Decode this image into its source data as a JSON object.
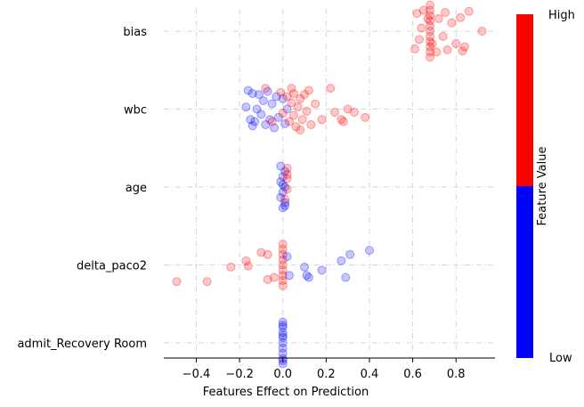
{
  "chart_data": {
    "type": "scatter",
    "xlabel": "Features Effect on Prediction",
    "xlim": [
      -0.55,
      0.98
    ],
    "xticks": [
      "-0.4",
      "-0.2",
      "0.0",
      "0.2",
      "0.4",
      "0.6",
      "0.8"
    ],
    "xtick_values": [
      -0.4,
      -0.2,
      0.0,
      0.2,
      0.4,
      0.6,
      0.8
    ],
    "grid": true,
    "colorbar": {
      "label": "Feature Value",
      "high_label": "High",
      "low_label": "Low",
      "high_color": "#ff0000",
      "low_color": "#0000ff",
      "split_fraction": 0.5
    },
    "features": [
      {
        "name": "bias",
        "points": [
          {
            "x": 0.68,
            "y": 0.0,
            "c": "high"
          },
          {
            "x": 0.68,
            "y": -0.05,
            "c": "high"
          },
          {
            "x": 0.68,
            "y": 0.05,
            "c": "high"
          },
          {
            "x": 0.68,
            "y": -0.1,
            "c": "high"
          },
          {
            "x": 0.68,
            "y": 0.1,
            "c": "high"
          },
          {
            "x": 0.68,
            "y": -0.15,
            "c": "high"
          },
          {
            "x": 0.68,
            "y": 0.15,
            "c": "high"
          },
          {
            "x": 0.68,
            "y": -0.2,
            "c": "high"
          },
          {
            "x": 0.68,
            "y": 0.2,
            "c": "high"
          },
          {
            "x": 0.68,
            "y": -0.25,
            "c": "high"
          },
          {
            "x": 0.68,
            "y": 0.25,
            "c": "high"
          },
          {
            "x": 0.67,
            "y": 0.12,
            "c": "high"
          },
          {
            "x": 0.69,
            "y": -0.12,
            "c": "high"
          },
          {
            "x": 0.62,
            "y": 0.17,
            "c": "high"
          },
          {
            "x": 0.63,
            "y": -0.08,
            "c": "high"
          },
          {
            "x": 0.61,
            "y": -0.17,
            "c": "high"
          },
          {
            "x": 0.64,
            "y": 0.03,
            "c": "high"
          },
          {
            "x": 0.72,
            "y": 0.12,
            "c": "high"
          },
          {
            "x": 0.74,
            "y": -0.05,
            "c": "high"
          },
          {
            "x": 0.75,
            "y": 0.18,
            "c": "high"
          },
          {
            "x": 0.76,
            "y": -0.18,
            "c": "high"
          },
          {
            "x": 0.78,
            "y": 0.08,
            "c": "high"
          },
          {
            "x": 0.8,
            "y": -0.12,
            "c": "high"
          },
          {
            "x": 0.82,
            "y": 0.13,
            "c": "high"
          },
          {
            "x": 0.84,
            "y": -0.15,
            "c": "high"
          },
          {
            "x": 0.83,
            "y": -0.19,
            "c": "high"
          },
          {
            "x": 0.86,
            "y": 0.19,
            "c": "high"
          },
          {
            "x": 0.92,
            "y": 0.0,
            "c": "high"
          },
          {
            "x": 0.71,
            "y": -0.2,
            "c": "high"
          },
          {
            "x": 0.65,
            "y": 0.2,
            "c": "high"
          }
        ]
      },
      {
        "name": "wbc",
        "points": [
          {
            "x": -0.17,
            "y": 0.02,
            "c": "low"
          },
          {
            "x": -0.16,
            "y": 0.18,
            "c": "low"
          },
          {
            "x": -0.14,
            "y": 0.15,
            "c": "low"
          },
          {
            "x": -0.13,
            "y": -0.12,
            "c": "low"
          },
          {
            "x": -0.12,
            "y": 0.0,
            "c": "low"
          },
          {
            "x": -0.11,
            "y": 0.14,
            "c": "low"
          },
          {
            "x": -0.1,
            "y": -0.05,
            "c": "low"
          },
          {
            "x": -0.09,
            "y": 0.08,
            "c": "low"
          },
          {
            "x": -0.08,
            "y": -0.15,
            "c": "low"
          },
          {
            "x": -0.07,
            "y": 0.17,
            "c": "low"
          },
          {
            "x": -0.06,
            "y": -0.1,
            "c": "low"
          },
          {
            "x": -0.05,
            "y": 0.05,
            "c": "low"
          },
          {
            "x": -0.04,
            "y": -0.18,
            "c": "low"
          },
          {
            "x": -0.03,
            "y": 0.12,
            "c": "low"
          },
          {
            "x": -0.02,
            "y": -0.08,
            "c": "low"
          },
          {
            "x": -0.15,
            "y": -0.1,
            "c": "low"
          },
          {
            "x": -0.14,
            "y": -0.16,
            "c": "low"
          },
          {
            "x": 0.0,
            "y": 0.1,
            "c": "low"
          },
          {
            "x": 0.01,
            "y": -0.14,
            "c": "low"
          },
          {
            "x": 0.02,
            "y": 0.0,
            "c": "low"
          },
          {
            "x": -0.01,
            "y": 0.16,
            "c": "high"
          },
          {
            "x": 0.0,
            "y": -0.04,
            "c": "high"
          },
          {
            "x": 0.02,
            "y": 0.12,
            "c": "high"
          },
          {
            "x": 0.03,
            "y": -0.12,
            "c": "high"
          },
          {
            "x": 0.04,
            "y": 0.06,
            "c": "high"
          },
          {
            "x": 0.04,
            "y": 0.2,
            "c": "high"
          },
          {
            "x": 0.05,
            "y": -0.06,
            "c": "high"
          },
          {
            "x": 0.05,
            "y": 0.15,
            "c": "high"
          },
          {
            "x": 0.06,
            "y": -0.17,
            "c": "high"
          },
          {
            "x": 0.07,
            "y": 0.02,
            "c": "high"
          },
          {
            "x": 0.08,
            "y": 0.1,
            "c": "high"
          },
          {
            "x": 0.09,
            "y": -0.1,
            "c": "high"
          },
          {
            "x": 0.1,
            "y": 0.14,
            "c": "high"
          },
          {
            "x": 0.11,
            "y": -0.02,
            "c": "high"
          },
          {
            "x": 0.12,
            "y": 0.18,
            "c": "high"
          },
          {
            "x": 0.13,
            "y": -0.15,
            "c": "high"
          },
          {
            "x": 0.15,
            "y": 0.05,
            "c": "high"
          },
          {
            "x": 0.18,
            "y": -0.1,
            "c": "high"
          },
          {
            "x": 0.22,
            "y": 0.2,
            "c": "high"
          },
          {
            "x": 0.24,
            "y": -0.03,
            "c": "high"
          },
          {
            "x": 0.27,
            "y": -0.1,
            "c": "high"
          },
          {
            "x": 0.28,
            "y": -0.12,
            "c": "high"
          },
          {
            "x": 0.3,
            "y": 0.0,
            "c": "high"
          },
          {
            "x": 0.33,
            "y": -0.03,
            "c": "high"
          },
          {
            "x": 0.38,
            "y": -0.08,
            "c": "high"
          },
          {
            "x": -0.08,
            "y": 0.2,
            "c": "high"
          },
          {
            "x": -0.05,
            "y": -0.12,
            "c": "high"
          },
          {
            "x": 0.08,
            "y": -0.2,
            "c": "high"
          }
        ]
      },
      {
        "name": "age",
        "points": [
          {
            "x": -0.01,
            "y": 0.2,
            "c": "low"
          },
          {
            "x": 0.01,
            "y": 0.15,
            "c": "low"
          },
          {
            "x": 0.0,
            "y": 0.1,
            "c": "low"
          },
          {
            "x": -0.01,
            "y": 0.05,
            "c": "low"
          },
          {
            "x": 0.01,
            "y": 0.0,
            "c": "low"
          },
          {
            "x": 0.0,
            "y": -0.05,
            "c": "low"
          },
          {
            "x": -0.01,
            "y": -0.1,
            "c": "low"
          },
          {
            "x": 0.01,
            "y": -0.15,
            "c": "low"
          },
          {
            "x": 0.0,
            "y": -0.2,
            "c": "low"
          },
          {
            "x": 0.02,
            "y": 0.18,
            "c": "high"
          },
          {
            "x": 0.02,
            "y": 0.08,
            "c": "high"
          },
          {
            "x": 0.02,
            "y": -0.02,
            "c": "high"
          },
          {
            "x": 0.01,
            "y": -0.12,
            "c": "high"
          },
          {
            "x": 0.02,
            "y": 0.12,
            "c": "high"
          },
          {
            "x": 0.01,
            "y": -0.18,
            "c": "low"
          },
          {
            "x": 0.0,
            "y": 0.02,
            "c": "low"
          }
        ]
      },
      {
        "name": "delta_paco2",
        "points": [
          {
            "x": 0.0,
            "y": 0.2,
            "c": "high"
          },
          {
            "x": 0.0,
            "y": 0.15,
            "c": "high"
          },
          {
            "x": 0.0,
            "y": 0.1,
            "c": "high"
          },
          {
            "x": 0.0,
            "y": 0.05,
            "c": "high"
          },
          {
            "x": 0.0,
            "y": 0.0,
            "c": "high"
          },
          {
            "x": 0.0,
            "y": -0.05,
            "c": "high"
          },
          {
            "x": 0.0,
            "y": -0.1,
            "c": "high"
          },
          {
            "x": 0.0,
            "y": -0.15,
            "c": "high"
          },
          {
            "x": 0.0,
            "y": -0.2,
            "c": "high"
          },
          {
            "x": -0.49,
            "y": -0.16,
            "c": "high"
          },
          {
            "x": -0.35,
            "y": -0.16,
            "c": "high"
          },
          {
            "x": -0.24,
            "y": -0.02,
            "c": "high"
          },
          {
            "x": -0.17,
            "y": 0.04,
            "c": "high"
          },
          {
            "x": -0.16,
            "y": -0.01,
            "c": "high"
          },
          {
            "x": -0.1,
            "y": 0.12,
            "c": "high"
          },
          {
            "x": -0.07,
            "y": 0.1,
            "c": "high"
          },
          {
            "x": -0.07,
            "y": -0.14,
            "c": "high"
          },
          {
            "x": -0.04,
            "y": -0.12,
            "c": "high"
          },
          {
            "x": 0.02,
            "y": 0.08,
            "c": "low"
          },
          {
            "x": 0.03,
            "y": -0.1,
            "c": "low"
          },
          {
            "x": 0.1,
            "y": -0.02,
            "c": "low"
          },
          {
            "x": 0.11,
            "y": -0.1,
            "c": "low"
          },
          {
            "x": 0.12,
            "y": -0.12,
            "c": "low"
          },
          {
            "x": 0.18,
            "y": -0.05,
            "c": "low"
          },
          {
            "x": 0.27,
            "y": 0.04,
            "c": "low"
          },
          {
            "x": 0.29,
            "y": -0.12,
            "c": "low"
          },
          {
            "x": 0.31,
            "y": 0.1,
            "c": "low"
          },
          {
            "x": 0.4,
            "y": 0.14,
            "c": "low"
          }
        ]
      },
      {
        "name": "admit_Recovery Room",
        "points": [
          {
            "x": 0.0,
            "y": 0.2,
            "c": "low"
          },
          {
            "x": 0.0,
            "y": 0.15,
            "c": "low"
          },
          {
            "x": 0.0,
            "y": 0.1,
            "c": "low"
          },
          {
            "x": 0.0,
            "y": 0.05,
            "c": "low"
          },
          {
            "x": 0.0,
            "y": 0.0,
            "c": "low"
          },
          {
            "x": 0.0,
            "y": -0.05,
            "c": "low"
          },
          {
            "x": 0.0,
            "y": -0.1,
            "c": "low"
          },
          {
            "x": 0.0,
            "y": -0.15,
            "c": "low"
          },
          {
            "x": 0.0,
            "y": -0.2,
            "c": "low"
          },
          {
            "x": 0.0,
            "y": 0.17,
            "c": "low"
          },
          {
            "x": 0.0,
            "y": -0.17,
            "c": "low"
          },
          {
            "x": 0.0,
            "y": 0.07,
            "c": "low"
          }
        ]
      }
    ]
  }
}
